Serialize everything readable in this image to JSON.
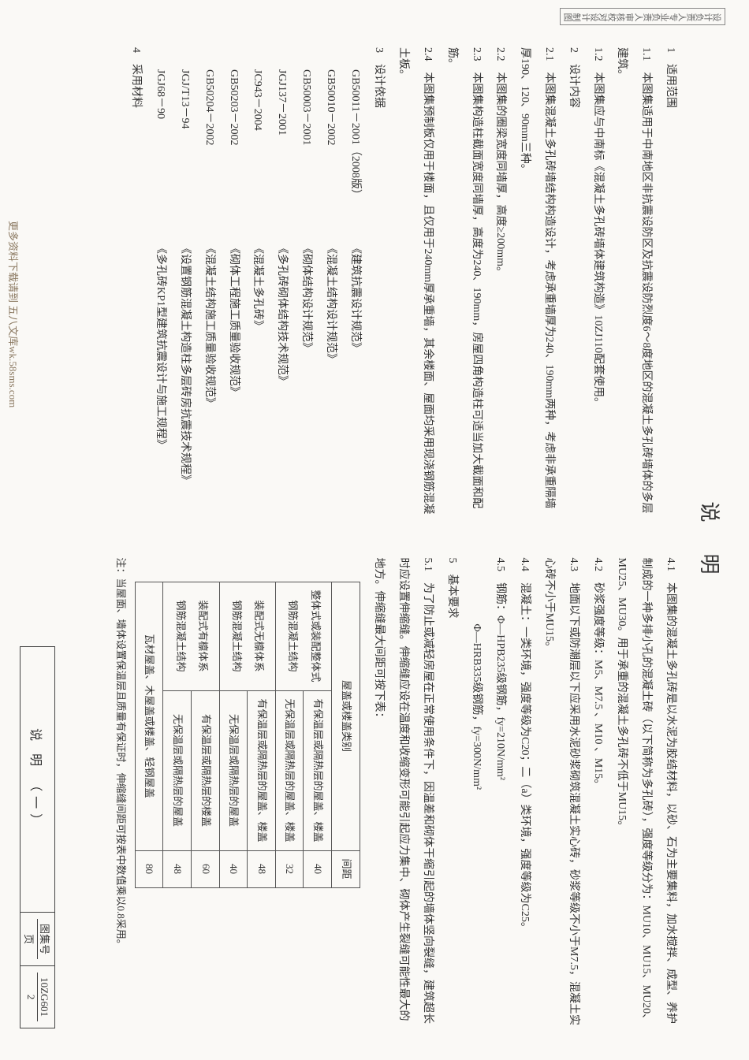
{
  "title": "说明",
  "left": {
    "h1": "1　适用范围",
    "p1_1": "1.1　本图集适用于中南地区非抗震设防区及抗震设防烈度6～8度地区的混凝土多孔砖墙体的多层建筑。",
    "p1_2": "1.2　本图集应与中南标《混凝土多孔砖墙体建筑构造》10ZJ110配套使用。",
    "h2": "2　设计内容",
    "p2_1": "2.1　本图集混凝土多孔砖墙结构构造设计，考虑承重墙厚为240、190mm两种，考虑非承重隔墙厚190、120、90mm三种。",
    "p2_2": "2.2　本图集的圈梁宽度同墙厚，高度≥200mm。",
    "p2_3": "2.3　本图集构造柱截面宽度同墙厚，高度为240、190mm，房屋四角构造柱可适当加大截面和配筋。",
    "p2_4": "2.4　本图集预制板仅用于楼面，且仅用于240mm厚承重墙，其余楼面、屋面均采用现浇钢筋混凝土板。",
    "h3": "3　设计依据",
    "refs": [
      {
        "code": "GB50011－2001（2008版）",
        "name": "《建筑抗震设计规范》"
      },
      {
        "code": "GB50010－2002",
        "name": "《混凝土结构设计规范》"
      },
      {
        "code": "GB50003－2001",
        "name": "《砌体结构设计规范》"
      },
      {
        "code": "JGJ137－2001",
        "name": "《多孔砖砌体结构技术规范》"
      },
      {
        "code": "JC943－2004",
        "name": "《混凝土多孔砖》"
      },
      {
        "code": "GB50203－2002",
        "name": "《砌体工程施工质量验收规范》"
      },
      {
        "code": "GB50204－2002",
        "name": "《混凝土结构施工质量验收规范》"
      },
      {
        "code": "JGJ/T13－94",
        "name": "《设置钢筋混凝土构造柱多层砖房抗震技术规程》"
      },
      {
        "code": "JGJ68－90",
        "name": "《多孔砖KP1型建筑抗震设计与施工规程》"
      }
    ],
    "h4": "4　采用材料"
  },
  "right": {
    "p4_1": "4.1　本图集的混凝土多孔砖是以水泥为胶结材料，以砂、石为主要集料，加水搅拌、成型、养护制成的一种多排小孔的混凝土砖（以下简称为多孔砖），强度等级分为：MU10、MU15、MU20、MU25、MU30。用于承重的混凝土多孔砖不低于MU15。",
    "p4_2": "4.2　砂浆强度等级：M5、M7.5 、M10 、M15。",
    "p4_3": "4.3　地面以下或防潮层以下应采用水泥砂浆砌筑混凝土实心砖，砂浆等级不小于M7.5，混凝土实心砖不小于MU15。",
    "p4_4": "4.4　混凝土：一类环境，强度等级为C20；二（a）类环境，强度等级为C25。",
    "p4_5a": "4.5　钢筋：Φ—HPB235级钢筋，fy=210N/mm²",
    "p4_5b": "　　　　　　Φ—HRB335级钢筋，fy=300N/mm²",
    "h5": "5　基本要求",
    "p5_1": "5.1　为了防止或减轻房屋在正常使用条件下，因温差和砌体干缩引起的墙体竖向裂缝，建筑超长时应设置伸缩缝。伸缩缝应设在温度和收缩变形可能引起应力集中、砌体产生裂缝可能性最大的地方。伸缩缝最大间距可按下表：",
    "table": {
      "headers": [
        "屋盖或楼盖类别",
        "",
        "间距"
      ],
      "rows": [
        [
          "整体式或装配整体式\n钢筋混凝土结构",
          "有保温层或隔热层的屋盖、楼盖",
          "40"
        ],
        [
          "",
          "无保温层或隔热层的屋盖、楼盖",
          "32"
        ],
        [
          "装配式无檩体系\n钢筋混凝土结构",
          "有保温层或隔热层的屋盖、楼盖",
          "48"
        ],
        [
          "",
          "无保温层或隔热层的屋盖",
          "40"
        ],
        [
          "装配式有檩体系\n钢筋混凝土结构",
          "有保温层或隔热层的楼盖",
          "60"
        ],
        [
          "",
          "无保温层或隔热层的屋盖",
          "48"
        ],
        [
          "瓦材屋盖、木屋盖或楼盖、轻钢屋盖",
          "",
          "80"
        ]
      ]
    },
    "table_note": "注：当屋面、墙体设置保温层且质量有保证时，伸缩缝间距可按表中数值乘以0.8采用。"
  },
  "titleblock": {
    "name": "说 明 （一）",
    "set_label": "图集号",
    "set_value": "10ZG601",
    "page_label": "页",
    "page_value": "2"
  },
  "stamp": {
    "a": "设计负责人",
    "b": "专业负责人",
    "c": "审核",
    "d": "校对",
    "e": "设计",
    "f": "制图"
  },
  "watermark": "更多资料下载请到 五八文库wk.58sms.com"
}
